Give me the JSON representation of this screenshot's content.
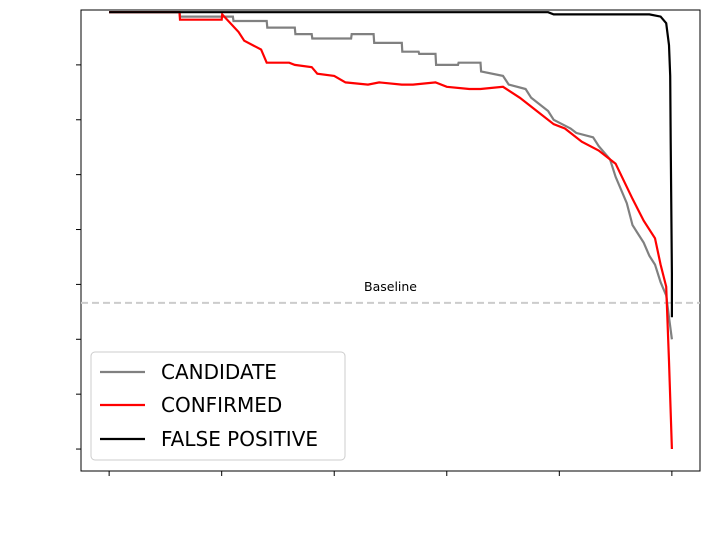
{
  "chart_data": {
    "type": "line",
    "title": "",
    "xlabel": "",
    "ylabel": "",
    "xlim": [
      -0.05,
      1.05
    ],
    "ylim": [
      -0.05,
      1.0
    ],
    "x_ticks": [
      0.0,
      0.2,
      0.4,
      0.6,
      0.8,
      1.0
    ],
    "y_ticks": [
      0.0,
      0.125,
      0.25,
      0.375,
      0.5,
      0.625,
      0.75,
      0.875
    ],
    "grid": false,
    "legend_position": "lower-left",
    "baseline": {
      "value": 0.333,
      "label": "Baseline",
      "color": "#cccccc",
      "style": "dashed"
    },
    "series": [
      {
        "name": "CANDIDATE",
        "color": "#808080",
        "x": [
          0.0,
          0.125,
          0.126,
          0.22,
          0.221,
          0.28,
          0.281,
          0.33,
          0.331,
          0.36,
          0.361,
          0.43,
          0.431,
          0.47,
          0.471,
          0.52,
          0.521,
          0.55,
          0.551,
          0.58,
          0.581,
          0.62,
          0.621,
          0.66,
          0.661,
          0.7,
          0.71,
          0.74,
          0.75,
          0.78,
          0.79,
          0.82,
          0.83,
          0.86,
          0.87,
          0.89,
          0.9,
          0.92,
          0.93,
          0.95,
          0.96,
          0.97,
          0.98,
          0.99,
          0.995,
          1.0
        ],
        "y": [
          0.995,
          0.995,
          0.985,
          0.985,
          0.975,
          0.975,
          0.96,
          0.96,
          0.945,
          0.945,
          0.935,
          0.935,
          0.945,
          0.945,
          0.925,
          0.925,
          0.905,
          0.905,
          0.9,
          0.9,
          0.875,
          0.875,
          0.88,
          0.88,
          0.86,
          0.85,
          0.83,
          0.82,
          0.8,
          0.77,
          0.75,
          0.73,
          0.72,
          0.71,
          0.69,
          0.66,
          0.62,
          0.56,
          0.51,
          0.47,
          0.44,
          0.42,
          0.38,
          0.35,
          0.3,
          0.25
        ]
      },
      {
        "name": "CONFIRMED",
        "color": "#ff0000",
        "x": [
          0.0,
          0.125,
          0.126,
          0.2,
          0.201,
          0.23,
          0.24,
          0.27,
          0.28,
          0.32,
          0.33,
          0.36,
          0.37,
          0.4,
          0.42,
          0.46,
          0.48,
          0.52,
          0.54,
          0.58,
          0.6,
          0.64,
          0.66,
          0.7,
          0.73,
          0.76,
          0.79,
          0.81,
          0.84,
          0.87,
          0.9,
          0.93,
          0.95,
          0.97,
          0.98,
          0.99,
          0.995,
          1.0
        ],
        "y": [
          0.995,
          0.995,
          0.978,
          0.978,
          0.99,
          0.95,
          0.93,
          0.91,
          0.88,
          0.88,
          0.875,
          0.87,
          0.855,
          0.85,
          0.835,
          0.83,
          0.835,
          0.83,
          0.83,
          0.835,
          0.825,
          0.82,
          0.82,
          0.825,
          0.8,
          0.77,
          0.74,
          0.73,
          0.7,
          0.68,
          0.65,
          0.57,
          0.52,
          0.48,
          0.42,
          0.37,
          0.2,
          0.0
        ]
      },
      {
        "name": "FALSE POSITIVE",
        "color": "#000000",
        "x": [
          0.0,
          0.78,
          0.79,
          0.96,
          0.98,
          0.99,
          0.995,
          0.997,
          0.998,
          1.0,
          1.0
        ],
        "y": [
          0.995,
          0.995,
          0.99,
          0.99,
          0.985,
          0.97,
          0.92,
          0.85,
          0.7,
          0.4,
          0.3
        ]
      }
    ]
  }
}
